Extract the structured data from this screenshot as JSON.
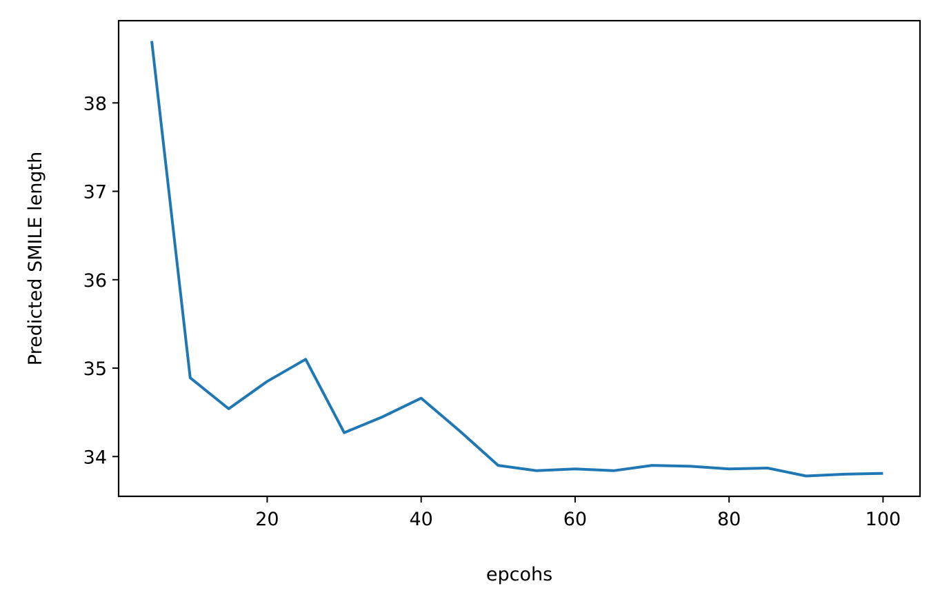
{
  "chart_data": {
    "type": "line",
    "title": "",
    "xlabel": "epcohs",
    "ylabel": "Predicted SMILE length",
    "xlim": [
      0.7,
      104.8
    ],
    "ylim": [
      33.55,
      38.93
    ],
    "xticks": [
      20,
      40,
      60,
      80,
      100
    ],
    "yticks": [
      34,
      35,
      36,
      37,
      38
    ],
    "grid": false,
    "series": [
      {
        "color": "#1f77b4",
        "x": [
          5,
          10,
          15,
          20,
          25,
          30,
          35,
          40,
          45,
          50,
          55,
          60,
          65,
          70,
          75,
          80,
          85,
          90,
          95,
          100
        ],
        "y": [
          38.7,
          34.89,
          34.54,
          34.85,
          35.1,
          34.27,
          34.45,
          34.66,
          34.29,
          33.9,
          33.84,
          33.86,
          33.84,
          33.9,
          33.89,
          33.86,
          33.87,
          33.78,
          33.8,
          33.81
        ]
      }
    ]
  }
}
